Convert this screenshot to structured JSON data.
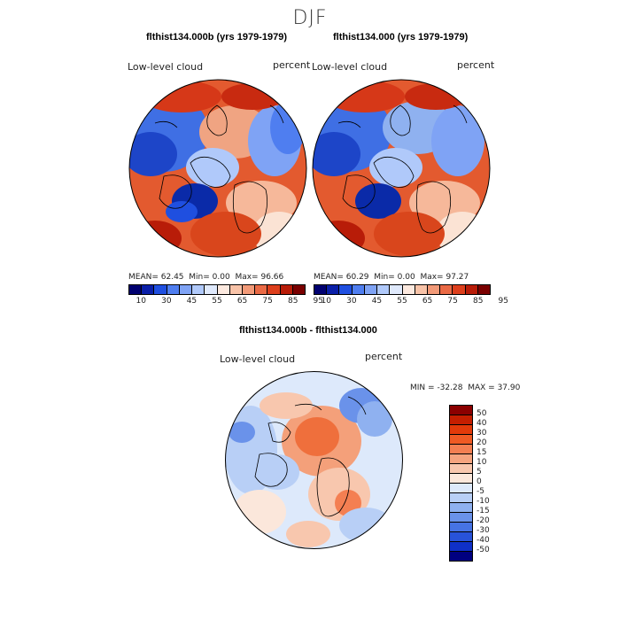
{
  "season": "DJF",
  "left_panel": {
    "title": "flthist134.000b (yrs 1979-1979)",
    "field_label": "Low-level cloud",
    "units": "percent",
    "mean_label": "MEAN=",
    "mean": "62.45",
    "min_label": "Min=",
    "min": "0.00",
    "max_label": "Max=",
    "max": "96.66"
  },
  "right_panel": {
    "title": "flthist134.000 (yrs 1979-1979)",
    "field_label": "Low-level cloud",
    "units": "percent",
    "mean_label": "MEAN=",
    "mean": "60.29",
    "min_label": "Min=",
    "min": "0.00",
    "max_label": "Max=",
    "max": "97.27"
  },
  "abs_colorbar": {
    "colors": [
      "#000070",
      "#0a1fa8",
      "#1f4fe0",
      "#4f7ef0",
      "#7fa3f5",
      "#b0c9fa",
      "#dfe9fc",
      "#fce9df",
      "#f8c3a8",
      "#f29a78",
      "#ea6a45",
      "#dd3f1c",
      "#b81c08",
      "#7a0000"
    ],
    "ticks": [
      "10",
      "30",
      "45",
      "55",
      "65",
      "75",
      "85",
      "95"
    ]
  },
  "diff_panel": {
    "title": "flthist134.000b - flthist134.000",
    "field_label": "Low-level cloud",
    "units": "percent",
    "min_label": "MIN =",
    "min": "-32.28",
    "max_label": "MAX =",
    "max": "37.90"
  },
  "diff_colorbar": {
    "colors": [
      "#8b0000",
      "#c41e00",
      "#e23a0a",
      "#ef5a24",
      "#f47f52",
      "#f6a47f",
      "#f8c7ae",
      "#fbe7db",
      "#dde9fb",
      "#b8cff6",
      "#8fb1f0",
      "#6a92ea",
      "#4673e4",
      "#2853d9",
      "#0f30c8",
      "#000080"
    ],
    "ticks": [
      "50",
      "40",
      "30",
      "20",
      "15",
      "10",
      "5",
      "0",
      "-5",
      "-10",
      "-15",
      "-20",
      "-30",
      "-40",
      "-50"
    ]
  }
}
